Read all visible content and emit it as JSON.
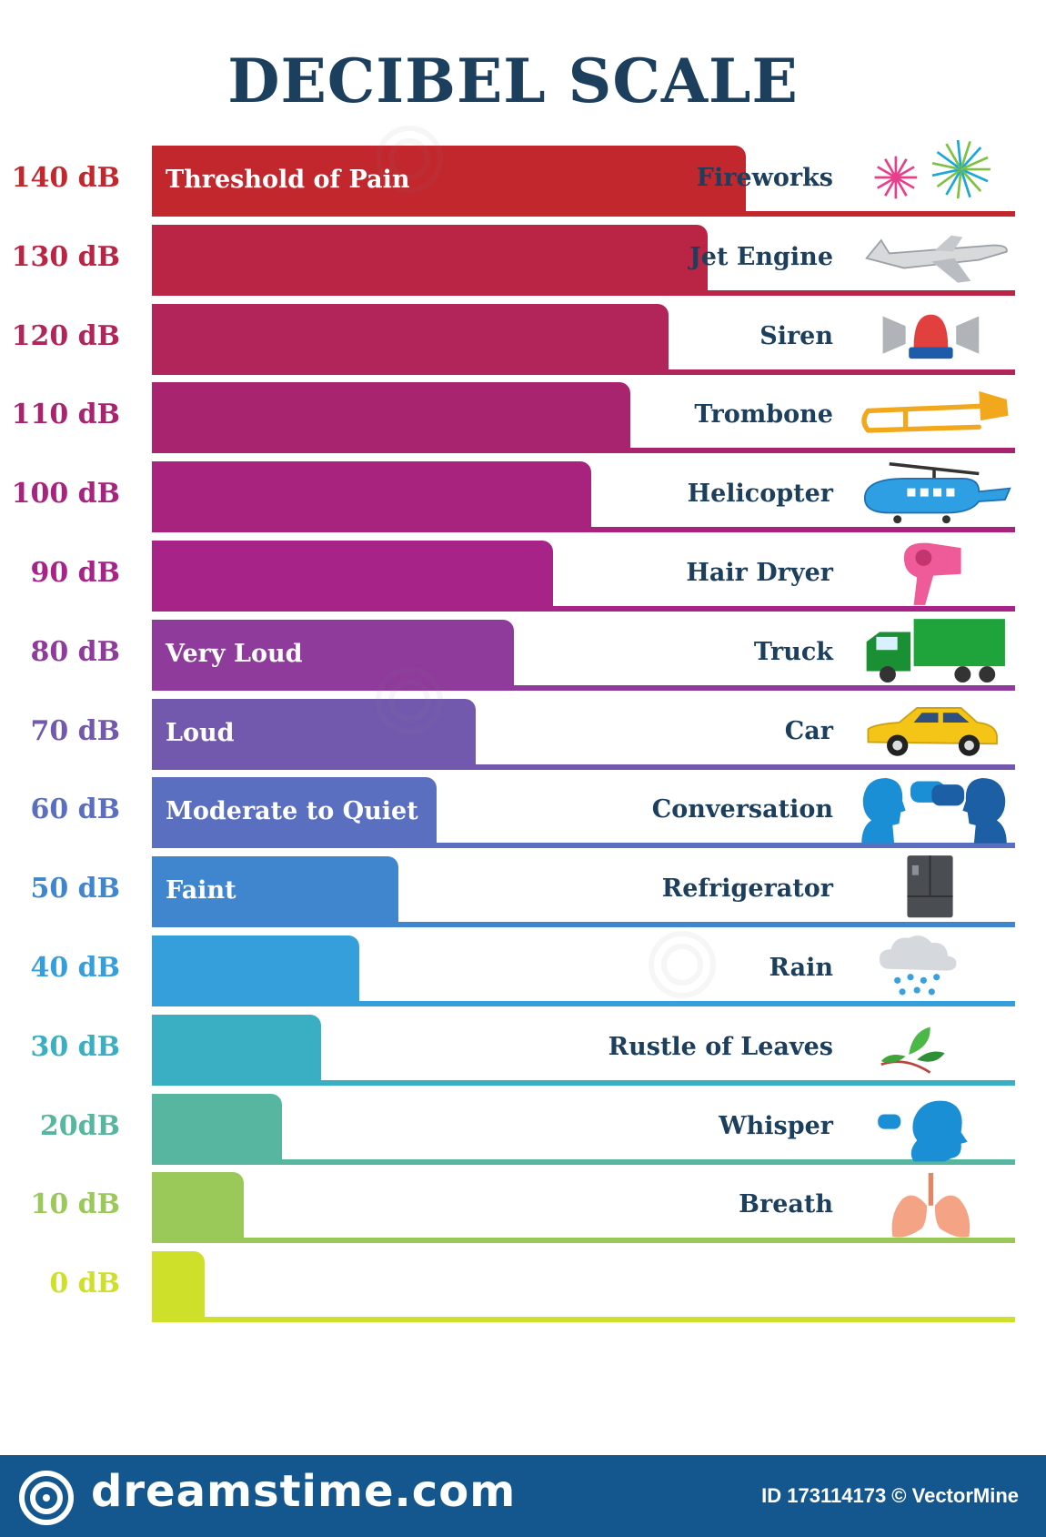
{
  "title": "DECIBEL SCALE",
  "colors": {
    "title": "#1d3f5e",
    "footer": "#14578f"
  },
  "chart_data": {
    "type": "bar",
    "orientation": "horizontal",
    "title": "DECIBEL SCALE",
    "unit": "dB",
    "xlim": [
      0,
      140
    ],
    "rows": [
      {
        "level": "140 dB",
        "value": 140,
        "band": "Threshold of Pain",
        "source": "Fireworks",
        "color": "#c1272d",
        "icon": "fireworks-icon"
      },
      {
        "level": "130 dB",
        "value": 130,
        "band": "",
        "source": "Jet Engine",
        "color": "#bb2545",
        "icon": "airplane-icon"
      },
      {
        "level": "120 dB",
        "value": 120,
        "band": "",
        "source": "Siren",
        "color": "#b1255a",
        "icon": "siren-icon"
      },
      {
        "level": "110 dB",
        "value": 110,
        "band": "",
        "source": "Trombone",
        "color": "#a9246f",
        "icon": "trombone-icon"
      },
      {
        "level": "100 dB",
        "value": 100,
        "band": "",
        "source": "Helicopter",
        "color": "#a8237d",
        "icon": "helicopter-icon"
      },
      {
        "level": "90 dB",
        "value": 90,
        "band": "",
        "source": "Hair Dryer",
        "color": "#a82387",
        "icon": "hair-dryer-icon"
      },
      {
        "level": "80 dB",
        "value": 80,
        "band": "Very Loud",
        "source": "Truck",
        "color": "#8e3b9c",
        "icon": "truck-icon"
      },
      {
        "level": "70 dB",
        "value": 70,
        "band": "Loud",
        "source": "Car",
        "color": "#7359ad",
        "icon": "car-icon"
      },
      {
        "level": "60 dB",
        "value": 60,
        "band": "Moderate to Quiet",
        "source": "Conversation",
        "color": "#5a6fc0",
        "icon": "conversation-icon"
      },
      {
        "level": "50 dB",
        "value": 50,
        "band": "Faint",
        "source": "Refrigerator",
        "color": "#3f86cf",
        "icon": "refrigerator-icon"
      },
      {
        "level": "40 dB",
        "value": 40,
        "band": "",
        "source": "Rain",
        "color": "#359fdc",
        "icon": "rain-cloud-icon"
      },
      {
        "level": "30 dB",
        "value": 30,
        "band": "",
        "source": "Rustle of Leaves",
        "color": "#3aaec3",
        "icon": "leaves-icon"
      },
      {
        "level": "20dB",
        "value": 20,
        "band": "",
        "source": "Whisper",
        "color": "#57b69f",
        "icon": "whisper-icon"
      },
      {
        "level": "10 dB",
        "value": 10,
        "band": "",
        "source": "Breath",
        "color": "#9ac95a",
        "icon": "lungs-icon"
      },
      {
        "level": "0 dB",
        "value": 0,
        "band": "",
        "source": "",
        "color": "#cfe02b",
        "icon": ""
      }
    ]
  },
  "footer": {
    "brand": "dreamstime.com",
    "credit": "ID 173114173 © VectorMine"
  }
}
